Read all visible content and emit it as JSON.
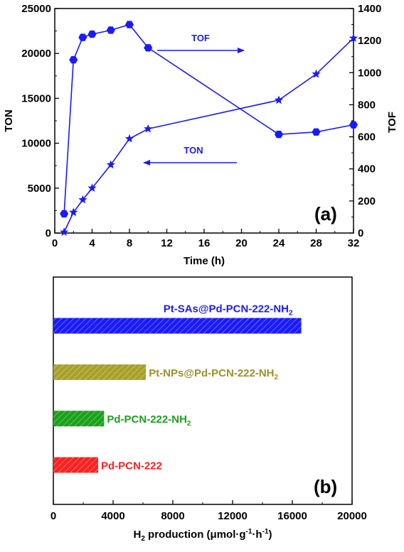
{
  "chart_data": [
    {
      "type": "line",
      "panel_label": "(a)",
      "xlabel": "Time (h)",
      "ylabel": "TON",
      "y2label": "TOF",
      "xlim": [
        0,
        32
      ],
      "ylim": [
        0,
        25000
      ],
      "y2lim": [
        0,
        1400
      ],
      "x_ticks": [
        "0",
        "4",
        "8",
        "12",
        "16",
        "20",
        "24",
        "28",
        "32"
      ],
      "y_ticks": [
        "0",
        "5000",
        "10000",
        "15000",
        "20000",
        "25000"
      ],
      "y2_ticks": [
        "0",
        "200",
        "400",
        "600",
        "800",
        "1000",
        "1200",
        "1400"
      ],
      "color": "#1a1aff",
      "series": [
        {
          "name": "TOF",
          "axis": "right",
          "marker": "hexagon",
          "x": [
            1,
            2,
            3,
            4,
            6,
            8,
            10,
            24,
            28,
            32
          ],
          "values": [
            120,
            1080,
            1220,
            1240,
            1265,
            1300,
            1155,
            615,
            630,
            675
          ]
        },
        {
          "name": "TON",
          "axis": "left",
          "marker": "star",
          "x": [
            1,
            2,
            3,
            4,
            6,
            8,
            10,
            24,
            28,
            32
          ],
          "values": [
            100,
            2300,
            3700,
            5000,
            7600,
            10500,
            11600,
            14800,
            17700,
            21700
          ]
        }
      ],
      "annotations": [
        {
          "text": "TOF",
          "arrow": "right"
        },
        {
          "text": "TON",
          "arrow": "left"
        }
      ]
    },
    {
      "type": "bar",
      "orientation": "horizontal",
      "panel_label": "(b)",
      "xlabel_parts": {
        "pre": "H",
        "sub1": "2",
        "mid": " production (μmol·g",
        "sup1": "-1",
        "mid2": "·h",
        "sup2": "-1",
        "post": ")"
      },
      "xlim": [
        0,
        20000
      ],
      "x_ticks": [
        "0",
        "4000",
        "8000",
        "12000",
        "16000",
        "20000"
      ],
      "categories": [
        {
          "base": "Pd-PCN-222",
          "sub": "",
          "color": "#ff2020",
          "label_color": "#ff2020"
        },
        {
          "base": "Pd-PCN-222-NH",
          "sub": "2",
          "color": "#1aa21a",
          "label_color": "#1aa21a"
        },
        {
          "base": "Pt-NPs@Pd-PCN-222-NH",
          "sub": "2",
          "color": "#a7a12a",
          "label_color": "#99922a"
        },
        {
          "base": "Pt-SAs@Pd-PCN-222-NH",
          "sub": "2",
          "color": "#1a1aff",
          "label_color": "#1a1aff"
        }
      ],
      "values": [
        3000,
        3400,
        6200,
        16600
      ]
    }
  ]
}
